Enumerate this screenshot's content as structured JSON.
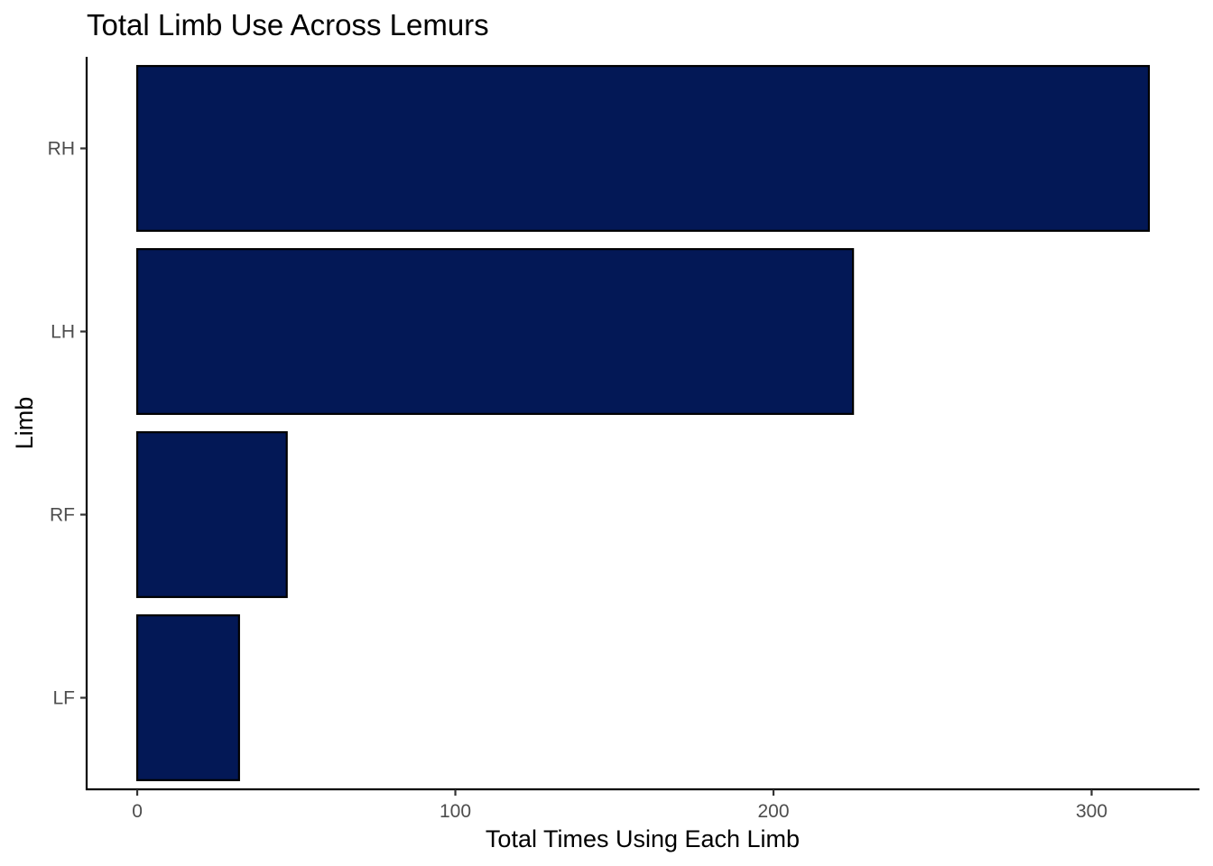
{
  "chart_data": {
    "type": "bar",
    "orientation": "horizontal",
    "title": "Total Limb Use Across Lemurs",
    "xlabel": "Total Times Using Each Limb",
    "ylabel": "Limb",
    "categories": [
      "RH",
      "LH",
      "RF",
      "LF"
    ],
    "values": [
      318,
      225,
      47,
      32
    ],
    "xlim": [
      -15.9,
      333.9
    ],
    "xticks": [
      0,
      100,
      200,
      300
    ],
    "grid": false,
    "legend": "none",
    "bar_fill": "#031856",
    "bar_stroke": "#000000"
  }
}
